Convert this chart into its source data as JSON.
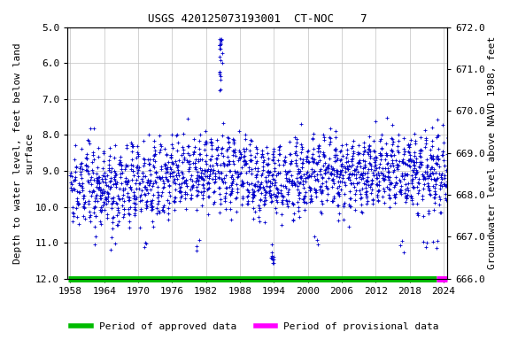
{
  "title": "USGS 420125073193001  CT-NOC    7",
  "ylabel_left": "Depth to water level, feet below land\nsurface",
  "ylabel_right": "Groundwater level above NAVD 1988, feet",
  "ylim_left": [
    5.0,
    12.0
  ],
  "ylim_right": [
    666.0,
    672.0
  ],
  "xlim": [
    1957.5,
    2024.7
  ],
  "xticks": [
    1958,
    1964,
    1970,
    1976,
    1982,
    1988,
    1994,
    2000,
    2006,
    2012,
    2018,
    2024
  ],
  "yticks_left": [
    5.0,
    6.0,
    7.0,
    8.0,
    9.0,
    10.0,
    11.0,
    12.0
  ],
  "yticks_right": [
    666.0,
    667.0,
    668.0,
    669.0,
    670.0,
    671.0,
    672.0
  ],
  "dot_color": "#0000cc",
  "approved_color": "#00bb00",
  "provisional_color": "#ff00ff",
  "background_color": "#ffffff",
  "grid_color": "#c0c0c0",
  "approved_start": 1957.6,
  "approved_end": 2022.8,
  "provisional_start": 2022.8,
  "provisional_end": 2024.6,
  "bar_y": 12.0,
  "legend_approved": "Period of approved data",
  "legend_provisional": "Period of provisional data",
  "title_fontsize": 9,
  "axis_fontsize": 8,
  "tick_fontsize": 8,
  "legend_fontsize": 8
}
